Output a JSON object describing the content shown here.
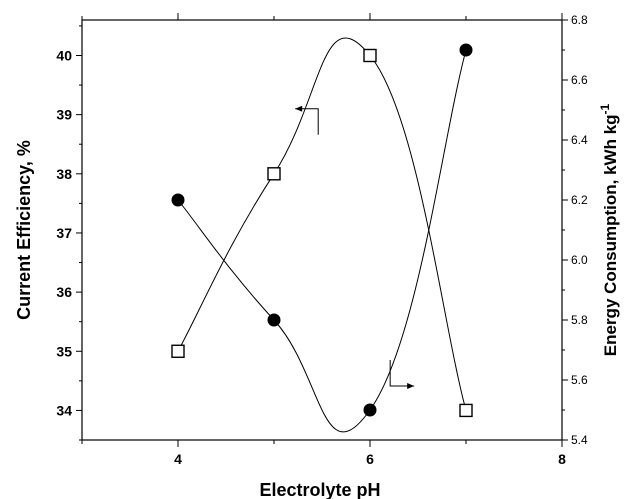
{
  "chart_data": {
    "type": "scatter",
    "xlabel": "Electrolyte pH",
    "ylabel_left": "Current Efficiency, %",
    "ylabel_right_main": "Energy Consumption, kWh kg",
    "ylabel_right_sup": "-1",
    "xlim": [
      3,
      8
    ],
    "ylim_left": [
      33.5,
      40.6
    ],
    "ylim_right": [
      5.4,
      6.8
    ],
    "x_ticks": [
      4,
      6,
      8
    ],
    "x_tick_labels": [
      "4",
      "6",
      "8"
    ],
    "y_left_ticks": [
      34,
      35,
      36,
      37,
      38,
      39,
      40
    ],
    "y_left_tick_labels": [
      "34",
      "35",
      "36",
      "37",
      "38",
      "39",
      "40"
    ],
    "y_right_ticks": [
      5.4,
      5.6,
      5.8,
      6.0,
      6.2,
      6.4,
      6.6,
      6.8
    ],
    "y_right_tick_labels": [
      "5.4",
      "5.6",
      "5.8",
      "6.0",
      "6.2",
      "6.4",
      "6.6",
      "6.8"
    ],
    "grid": false,
    "series": [
      {
        "axis": "left",
        "marker": "open-square",
        "x": [
          4,
          5,
          6,
          7
        ],
        "y": [
          35,
          38,
          40,
          34
        ]
      },
      {
        "axis": "right",
        "marker": "filled-circle",
        "x": [
          4,
          5,
          6,
          7
        ],
        "y": [
          6.2,
          5.8,
          5.5,
          6.7
        ]
      }
    ]
  }
}
